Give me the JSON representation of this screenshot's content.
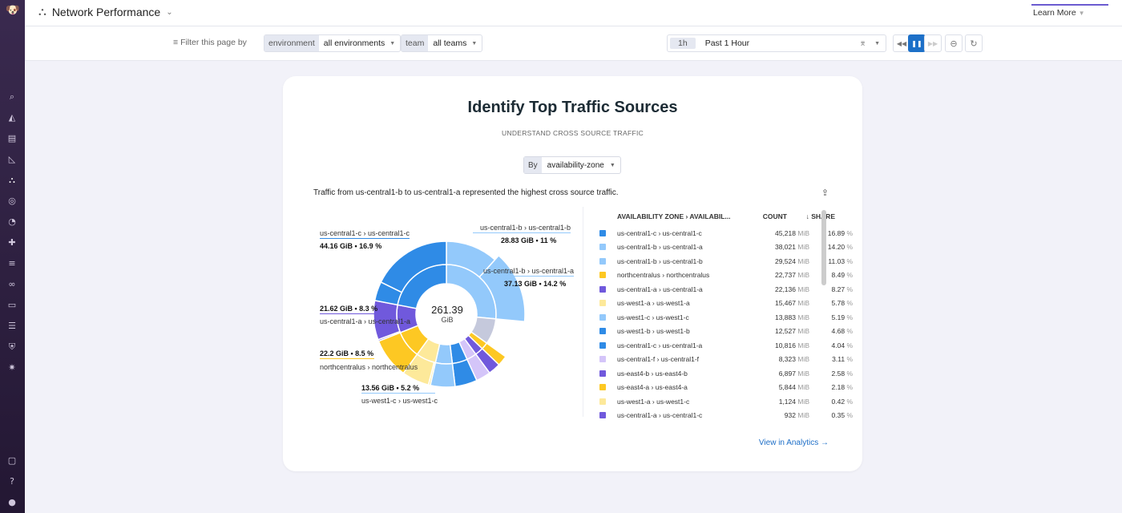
{
  "header": {
    "title": "Network Performance",
    "learn_more": "Learn More"
  },
  "filters": {
    "label": "Filter this page by",
    "environment_key": "environment",
    "environment_value": "all environments",
    "team_key": "team",
    "team_value": "all teams"
  },
  "time": {
    "badge": "1h",
    "value": "Past 1 Hour"
  },
  "card": {
    "title": "Identify Top Traffic Sources",
    "subtitle": "UNDERSTAND CROSS SOURCE TRAFFIC",
    "by_label": "By",
    "by_value": "availability-zone",
    "summary": "Traffic from us-central1-b to us-central1-a represented the highest cross source traffic.",
    "total": "261.39",
    "total_unit": "GiB",
    "link": "View in Analytics →"
  },
  "labels": [
    {
      "name": "us-central1-c › us-central1-c",
      "value": "44.16 GiB • 16.9 %"
    },
    {
      "name": "us-central1-b › us-central1-b",
      "value": "28.83 GiB • 11 %"
    },
    {
      "name": "us-central1-b › us-central1-a",
      "value": "37.13 GiB • 14.2 %"
    },
    {
      "name": "us-central1-a › us-central1-a",
      "value": "21.62 GiB • 8.3 %"
    },
    {
      "name": "northcentralus › northcentralus",
      "value": "22.2 GiB • 8.5 %"
    },
    {
      "name": "us-west1-c › us-west1-c",
      "value": "13.56 GiB • 5.2 %"
    }
  ],
  "table": {
    "headers": [
      "AVAILABILITY ZONE › AVAILABIL...",
      "COUNT",
      "SHARE"
    ],
    "unit": "MiB",
    "rows": [
      {
        "zone": "us-central1-c › us-central1-c",
        "count": "45,218",
        "share": "16.89",
        "color": "#2f8be6"
      },
      {
        "zone": "us-central1-b › us-central1-a",
        "count": "38,021",
        "share": "14.20",
        "color": "#93c9fb"
      },
      {
        "zone": "us-central1-b › us-central1-b",
        "count": "29,524",
        "share": "11.03",
        "color": "#93c9fb"
      },
      {
        "zone": "northcentralus › northcentralus",
        "count": "22,737",
        "share": "8.49",
        "color": "#fdc823"
      },
      {
        "zone": "us-central1-a › us-central1-a",
        "count": "22,136",
        "share": "8.27",
        "color": "#7059dc"
      },
      {
        "zone": "us-west1-a › us-west1-a",
        "count": "15,467",
        "share": "5.78",
        "color": "#fde99a"
      },
      {
        "zone": "us-west1-c › us-west1-c",
        "count": "13,883",
        "share": "5.19",
        "color": "#93c9fb"
      },
      {
        "zone": "us-west1-b › us-west1-b",
        "count": "12,527",
        "share": "4.68",
        "color": "#2f8be6"
      },
      {
        "zone": "us-central1-c › us-central1-a",
        "count": "10,816",
        "share": "4.04",
        "color": "#2f8be6"
      },
      {
        "zone": "us-central1-f › us-central1-f",
        "count": "8,323",
        "share": "3.11",
        "color": "#d4c5f9"
      },
      {
        "zone": "us-east4-b › us-east4-b",
        "count": "6,897",
        "share": "2.58",
        "color": "#7059dc"
      },
      {
        "zone": "us-east4-a › us-east4-a",
        "count": "5,844",
        "share": "2.18",
        "color": "#fdc823"
      },
      {
        "zone": "us-west1-a › us-west1-c",
        "count": "1,124",
        "share": "0.42",
        "color": "#fde99a"
      },
      {
        "zone": "us-central1-a › us-central1-c",
        "count": "932",
        "share": "0.35",
        "color": "#7059dc"
      }
    ]
  },
  "chart_data": {
    "type": "sunburst",
    "total": "261.39 GiB",
    "sources": [
      {
        "source": "us-central1-b",
        "color": "#93c9fb",
        "children": [
          {
            "dest": "us-central1-b",
            "share": 11.03
          },
          {
            "dest": "us-central1-a",
            "share": 14.2
          }
        ]
      },
      {
        "source": "other",
        "color": "#c5c9dc",
        "children": []
      },
      {
        "source": "us-east4-a",
        "color": "#fdc823",
        "children": [
          {
            "dest": "us-east4-a",
            "share": 2.18
          }
        ]
      },
      {
        "source": "us-east4-b",
        "color": "#7059dc",
        "children": [
          {
            "dest": "us-east4-b",
            "share": 2.58
          }
        ]
      },
      {
        "source": "us-central1-f",
        "color": "#d4c5f9",
        "children": [
          {
            "dest": "us-central1-f",
            "share": 3.11
          }
        ]
      },
      {
        "source": "us-west1-b",
        "color": "#2f8be6",
        "children": [
          {
            "dest": "us-west1-b",
            "share": 4.68
          }
        ]
      },
      {
        "source": "us-west1-c",
        "color": "#93c9fb",
        "children": [
          {
            "dest": "us-west1-c",
            "share": 5.19
          }
        ]
      },
      {
        "source": "us-west1-a",
        "color": "#fde99a",
        "children": [
          {
            "dest": "us-west1-c",
            "share": 0.42
          },
          {
            "dest": "us-west1-a",
            "share": 5.78
          }
        ]
      },
      {
        "source": "northcentralus",
        "color": "#fdc823",
        "children": [
          {
            "dest": "northcentralus",
            "share": 8.49
          }
        ]
      },
      {
        "source": "us-central1-a",
        "color": "#7059dc",
        "children": [
          {
            "dest": "us-central1-c",
            "share": 0.35
          },
          {
            "dest": "us-central1-a",
            "share": 8.27
          }
        ]
      },
      {
        "source": "us-central1-c",
        "color": "#2f8be6",
        "children": [
          {
            "dest": "us-central1-a",
            "share": 4.04
          },
          {
            "dest": "us-central1-c",
            "share": 16.89
          }
        ]
      }
    ]
  }
}
